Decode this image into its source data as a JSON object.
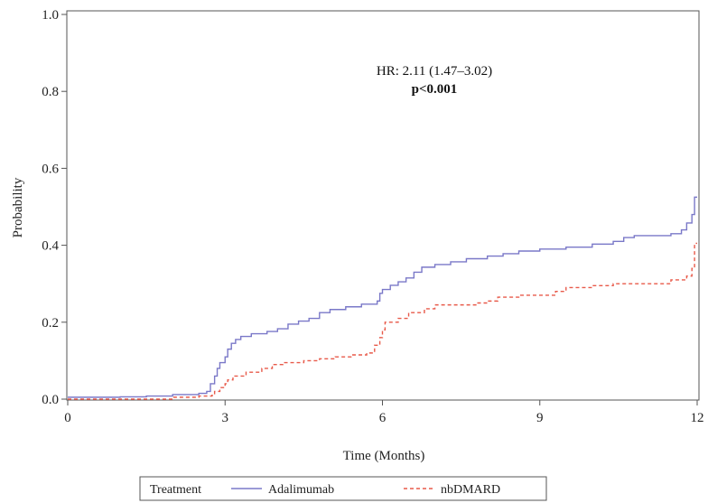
{
  "chart_data": {
    "type": "line",
    "step": true,
    "xlabel": "Time (Months)",
    "ylabel": "Probability",
    "xlim": [
      0,
      12
    ],
    "ylim": [
      0,
      1.0
    ],
    "xticks": [
      0,
      3,
      6,
      9,
      12
    ],
    "xtick_labels": [
      "0",
      "3",
      "6",
      "9",
      "12"
    ],
    "yticks": [
      0,
      0.2,
      0.4,
      0.6,
      0.8,
      1.0
    ],
    "ytick_labels": [
      "0.0",
      "0.2",
      "0.4",
      "0.6",
      "0.8",
      "1.0"
    ],
    "grid": false,
    "annotations": {
      "hr": "HR: 2.11 (1.47–3.02)",
      "p": "p<0.001"
    },
    "legend": {
      "title": "Treatment",
      "position": "bottom"
    },
    "series": [
      {
        "name": "Adalimumab",
        "color": "#7a78c8",
        "dash": "solid",
        "points": [
          [
            0.0,
            0.005
          ],
          [
            0.5,
            0.005
          ],
          [
            1.0,
            0.006
          ],
          [
            1.5,
            0.008
          ],
          [
            2.0,
            0.012
          ],
          [
            2.5,
            0.015
          ],
          [
            2.65,
            0.02
          ],
          [
            2.72,
            0.04
          ],
          [
            2.8,
            0.06
          ],
          [
            2.85,
            0.08
          ],
          [
            2.9,
            0.095
          ],
          [
            3.0,
            0.11
          ],
          [
            3.05,
            0.13
          ],
          [
            3.12,
            0.145
          ],
          [
            3.2,
            0.155
          ],
          [
            3.3,
            0.163
          ],
          [
            3.5,
            0.17
          ],
          [
            3.8,
            0.176
          ],
          [
            4.0,
            0.183
          ],
          [
            4.2,
            0.195
          ],
          [
            4.4,
            0.203
          ],
          [
            4.6,
            0.21
          ],
          [
            4.8,
            0.225
          ],
          [
            5.0,
            0.233
          ],
          [
            5.3,
            0.24
          ],
          [
            5.6,
            0.247
          ],
          [
            5.9,
            0.255
          ],
          [
            5.95,
            0.275
          ],
          [
            6.0,
            0.285
          ],
          [
            6.15,
            0.296
          ],
          [
            6.3,
            0.305
          ],
          [
            6.45,
            0.315
          ],
          [
            6.6,
            0.33
          ],
          [
            6.75,
            0.343
          ],
          [
            7.0,
            0.35
          ],
          [
            7.3,
            0.357
          ],
          [
            7.6,
            0.365
          ],
          [
            8.0,
            0.372
          ],
          [
            8.3,
            0.378
          ],
          [
            8.6,
            0.385
          ],
          [
            9.0,
            0.39
          ],
          [
            9.5,
            0.395
          ],
          [
            10.0,
            0.403
          ],
          [
            10.4,
            0.41
          ],
          [
            10.6,
            0.42
          ],
          [
            10.8,
            0.425
          ],
          [
            11.2,
            0.425
          ],
          [
            11.5,
            0.43
          ],
          [
            11.7,
            0.44
          ],
          [
            11.8,
            0.458
          ],
          [
            11.9,
            0.48
          ],
          [
            11.95,
            0.525
          ],
          [
            12.0,
            0.525
          ]
        ]
      },
      {
        "name": "nbDMARD",
        "color": "#e85a4a",
        "dash": "dashed",
        "points": [
          [
            0.0,
            0.0
          ],
          [
            1.5,
            0.0
          ],
          [
            2.0,
            0.005
          ],
          [
            2.5,
            0.008
          ],
          [
            2.75,
            0.01
          ],
          [
            2.8,
            0.02
          ],
          [
            2.9,
            0.03
          ],
          [
            3.0,
            0.04
          ],
          [
            3.05,
            0.05
          ],
          [
            3.15,
            0.06
          ],
          [
            3.4,
            0.07
          ],
          [
            3.7,
            0.08
          ],
          [
            3.9,
            0.09
          ],
          [
            4.1,
            0.095
          ],
          [
            4.5,
            0.1
          ],
          [
            4.8,
            0.105
          ],
          [
            5.1,
            0.11
          ],
          [
            5.4,
            0.115
          ],
          [
            5.7,
            0.12
          ],
          [
            5.85,
            0.14
          ],
          [
            5.95,
            0.16
          ],
          [
            6.0,
            0.18
          ],
          [
            6.05,
            0.2
          ],
          [
            6.3,
            0.21
          ],
          [
            6.5,
            0.225
          ],
          [
            6.8,
            0.235
          ],
          [
            7.0,
            0.245
          ],
          [
            7.3,
            0.245
          ],
          [
            7.8,
            0.25
          ],
          [
            8.0,
            0.255
          ],
          [
            8.2,
            0.265
          ],
          [
            8.6,
            0.27
          ],
          [
            9.0,
            0.27
          ],
          [
            9.3,
            0.28
          ],
          [
            9.5,
            0.29
          ],
          [
            10.0,
            0.295
          ],
          [
            10.4,
            0.3
          ],
          [
            11.0,
            0.3
          ],
          [
            11.5,
            0.31
          ],
          [
            11.8,
            0.32
          ],
          [
            11.9,
            0.34
          ],
          [
            11.95,
            0.405
          ],
          [
            12.0,
            0.405
          ]
        ]
      }
    ]
  }
}
